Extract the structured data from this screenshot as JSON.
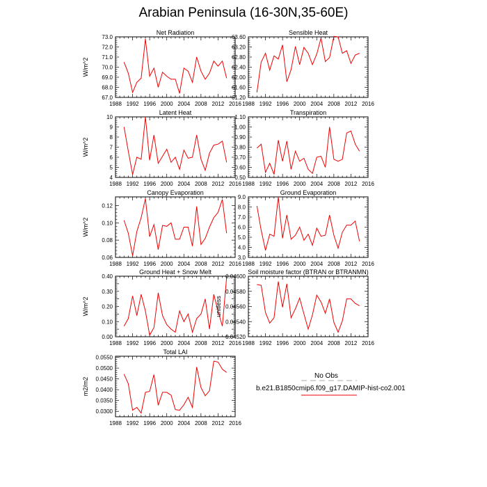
{
  "title": "Arabian Peninsula (16-30N,35-60E)",
  "legend": {
    "obs_label": "No Obs",
    "obs_color": "#aaaaaa",
    "case_label": "b.e21.B1850cmip6.f09_g17.DAMIP-hist-co2.001",
    "case_color": "#ee0000"
  },
  "chart_data": [
    {
      "type": "line",
      "title": "Net Radiation",
      "ylabel": "W/m^2",
      "xlim": [
        1988,
        2016
      ],
      "xticks": [
        1988,
        1992,
        1996,
        2000,
        2004,
        2008,
        2012,
        2016
      ],
      "xtick_labels": [
        "1988",
        "1992",
        "1996",
        "2000",
        "2004",
        "2008",
        "2012",
        "2016"
      ],
      "ylim": [
        67.0,
        73.0
      ],
      "yticks": [
        67.0,
        68.0,
        69.0,
        70.0,
        71.0,
        72.0,
        73.0
      ],
      "ytick_labels": [
        "67.0",
        "68.0",
        "69.0",
        "70.0",
        "71.0",
        "72.0",
        "73.0"
      ],
      "series": [
        {
          "x": [
            1990,
            1991,
            1992,
            1993,
            1994,
            1995,
            1996,
            1997,
            1998,
            1999,
            2000,
            2001,
            2002,
            2003,
            2004,
            2005,
            2006,
            2007,
            2008,
            2009,
            2010,
            2011,
            2012,
            2013,
            2014
          ],
          "values": [
            70.5,
            69.4,
            67.5,
            68.5,
            68.9,
            72.8,
            69.1,
            69.9,
            68.0,
            69.5,
            69.1,
            68.8,
            68.8,
            67.4,
            69.9,
            69.6,
            68.5,
            71.0,
            69.6,
            68.8,
            69.4,
            70.6,
            70.1,
            70.6,
            68.9
          ]
        }
      ]
    },
    {
      "type": "line",
      "title": "Sensible Heat",
      "ylabel": "",
      "xlim": [
        1988,
        2016
      ],
      "xticks": [
        1988,
        1992,
        1996,
        2000,
        2004,
        2008,
        2012,
        2016
      ],
      "xtick_labels": [
        "1988",
        "1992",
        "1996",
        "2000",
        "2004",
        "2008",
        "2012",
        "2016"
      ],
      "ylim": [
        61.2,
        63.6
      ],
      "yticks": [
        61.2,
        61.6,
        62.0,
        62.4,
        62.8,
        63.2,
        63.6
      ],
      "ytick_labels": [
        "61.20",
        "61.60",
        "62.00",
        "62.40",
        "62.80",
        "63.20",
        "63.60"
      ],
      "series": [
        {
          "x": [
            1990,
            1991,
            1992,
            1993,
            1994,
            1995,
            1996,
            1997,
            1998,
            1999,
            2000,
            2001,
            2002,
            2003,
            2004,
            2005,
            2006,
            2007,
            2008,
            2009,
            2010,
            2011,
            2012,
            2013,
            2014
          ],
          "values": [
            61.4,
            62.6,
            62.95,
            62.28,
            62.85,
            62.72,
            63.28,
            61.82,
            62.3,
            63.22,
            62.5,
            63.18,
            62.95,
            62.5,
            62.92,
            63.55,
            62.62,
            62.78,
            63.62,
            63.6,
            62.95,
            63.05,
            62.55,
            62.88,
            62.95
          ]
        }
      ]
    },
    {
      "type": "line",
      "title": "Latent Heat",
      "ylabel": "W/m^2",
      "xlim": [
        1988,
        2016
      ],
      "xticks": [
        1988,
        1992,
        1996,
        2000,
        2004,
        2008,
        2012,
        2016
      ],
      "xtick_labels": [
        "1988",
        "1992",
        "1996",
        "2000",
        "2004",
        "2008",
        "2012",
        "2016"
      ],
      "ylim": [
        4,
        10
      ],
      "yticks": [
        4,
        5,
        6,
        7,
        8,
        9,
        10
      ],
      "ytick_labels": [
        "4",
        "5",
        "6",
        "7",
        "8",
        "9",
        "10"
      ],
      "series": [
        {
          "x": [
            1990,
            1991,
            1992,
            1993,
            1994,
            1995,
            1996,
            1997,
            1998,
            1999,
            2000,
            2001,
            2002,
            2003,
            2004,
            2005,
            2006,
            2007,
            2008,
            2009,
            2010,
            2011,
            2012,
            2013,
            2014
          ],
          "values": [
            9.0,
            6.6,
            4.3,
            6.0,
            5.8,
            10.0,
            5.7,
            8.2,
            5.4,
            6.1,
            6.8,
            5.5,
            6.0,
            4.8,
            6.7,
            5.9,
            6.0,
            8.2,
            5.8,
            4.7,
            6.4,
            7.2,
            7.3,
            7.6,
            5.5
          ]
        }
      ]
    },
    {
      "type": "line",
      "title": "Transpiration",
      "ylabel": "",
      "xlim": [
        1988,
        2016
      ],
      "xticks": [
        1988,
        1992,
        1996,
        2000,
        2004,
        2008,
        2012,
        2016
      ],
      "xtick_labels": [
        "1988",
        "1992",
        "1996",
        "2000",
        "2004",
        "2008",
        "2012",
        "2016"
      ],
      "ylim": [
        0.5,
        1.1
      ],
      "yticks": [
        0.5,
        0.6,
        0.7,
        0.8,
        0.9,
        1.0,
        1.1
      ],
      "ytick_labels": [
        "0.50",
        "0.60",
        "0.70",
        "0.80",
        "0.90",
        "1.00",
        "1.10"
      ],
      "series": [
        {
          "x": [
            1990,
            1991,
            1992,
            1993,
            1994,
            1995,
            1996,
            1997,
            1998,
            1999,
            2000,
            2001,
            2002,
            2003,
            2004,
            2005,
            2006,
            2007,
            2008,
            2009,
            2010,
            2011,
            2012,
            2013,
            2014
          ],
          "values": [
            0.79,
            0.83,
            0.55,
            0.64,
            0.53,
            0.87,
            0.66,
            0.86,
            0.58,
            0.76,
            0.66,
            0.69,
            0.58,
            0.54,
            0.7,
            0.71,
            0.6,
            1.0,
            0.68,
            0.66,
            0.68,
            0.94,
            0.96,
            0.83,
            0.76
          ]
        }
      ]
    },
    {
      "type": "line",
      "title": "Canopy Evaporation",
      "ylabel": "W/m^2",
      "xlim": [
        1988,
        2016
      ],
      "xticks": [
        1988,
        1992,
        1996,
        2000,
        2004,
        2008,
        2012,
        2016
      ],
      "xtick_labels": [
        "1988",
        "1992",
        "1996",
        "2000",
        "2004",
        "2008",
        "2012",
        "2016"
      ],
      "ylim": [
        0.06,
        0.13
      ],
      "yticks": [
        0.06,
        0.08,
        0.1,
        0.12
      ],
      "ytick_labels": [
        "0.06",
        "0.08",
        "0.10",
        "0.12"
      ],
      "series": [
        {
          "x": [
            1990,
            1991,
            1992,
            1993,
            1994,
            1995,
            1996,
            1997,
            1998,
            1999,
            2000,
            2001,
            2002,
            2003,
            2004,
            2005,
            2006,
            2007,
            2008,
            2009,
            2010,
            2011,
            2012,
            2013,
            2014
          ],
          "values": [
            0.103,
            0.088,
            0.062,
            0.09,
            0.106,
            0.128,
            0.084,
            0.098,
            0.069,
            0.097,
            0.096,
            0.1,
            0.081,
            0.081,
            0.095,
            0.095,
            0.073,
            0.119,
            0.075,
            0.082,
            0.095,
            0.106,
            0.112,
            0.127,
            0.088
          ]
        }
      ]
    },
    {
      "type": "line",
      "title": "Ground Evaporation",
      "ylabel": "",
      "xlim": [
        1988,
        2016
      ],
      "xticks": [
        1988,
        1992,
        1996,
        2000,
        2004,
        2008,
        2012,
        2016
      ],
      "xtick_labels": [
        "1988",
        "1992",
        "1996",
        "2000",
        "2004",
        "2008",
        "2012",
        "2016"
      ],
      "ylim": [
        3.0,
        9.0
      ],
      "yticks": [
        3.0,
        4.0,
        5.0,
        6.0,
        7.0,
        8.0,
        9.0
      ],
      "ytick_labels": [
        "3.0",
        "4.0",
        "5.0",
        "6.0",
        "7.0",
        "8.0",
        "9.0"
      ],
      "series": [
        {
          "x": [
            1990,
            1991,
            1992,
            1993,
            1994,
            1995,
            1996,
            1997,
            1998,
            1999,
            2000,
            2001,
            2002,
            2003,
            2004,
            2005,
            2006,
            2007,
            2008,
            2009,
            2010,
            2011,
            2012,
            2013,
            2014
          ],
          "values": [
            8.1,
            5.7,
            3.7,
            5.3,
            5.1,
            9.0,
            4.9,
            7.2,
            4.8,
            5.2,
            6.0,
            4.7,
            5.3,
            4.2,
            5.9,
            5.1,
            5.2,
            7.2,
            5.2,
            3.9,
            5.5,
            6.2,
            6.2,
            6.6,
            4.6
          ]
        }
      ]
    },
    {
      "type": "line",
      "title": "Ground Heat + Snow Melt",
      "ylabel": "W/m^2",
      "xlim": [
        1988,
        2016
      ],
      "xticks": [
        1988,
        1992,
        1996,
        2000,
        2004,
        2008,
        2012,
        2016
      ],
      "xtick_labels": [
        "1988",
        "1992",
        "1996",
        "2000",
        "2004",
        "2008",
        "2012",
        "2016"
      ],
      "ylim": [
        0.0,
        0.4
      ],
      "yticks": [
        0.0,
        0.05,
        0.1,
        0.15,
        0.2,
        0.25,
        0.3,
        0.35,
        0.4
      ],
      "ytick_labels": [
        "0.00",
        "",
        "0.10",
        "",
        "0.20",
        "",
        "0.30",
        "",
        "0.40"
      ],
      "series": [
        {
          "x": [
            1990,
            1991,
            1992,
            1993,
            1994,
            1995,
            1996,
            1997,
            1998,
            1999,
            2000,
            2001,
            2002,
            2003,
            2004,
            2005,
            2006,
            2007,
            2008,
            2009,
            2010,
            2011,
            2012,
            2013,
            2014
          ],
          "values": [
            0.07,
            0.12,
            0.27,
            0.14,
            0.28,
            0.17,
            0.01,
            0.06,
            0.29,
            0.14,
            0.08,
            0.05,
            0.03,
            0.17,
            0.1,
            0.15,
            0.03,
            0.12,
            0.15,
            0.25,
            0.05,
            0.28,
            0.17,
            0.07,
            0.39
          ]
        }
      ]
    },
    {
      "type": "line",
      "title": "Soil moisture factor (BTRAN or BTRANMN)",
      "ylabel": "unitless",
      "xlim": [
        1988,
        2016
      ],
      "xticks": [
        1988,
        1992,
        1996,
        2000,
        2004,
        2008,
        2012,
        2016
      ],
      "xtick_labels": [
        "1988",
        "1992",
        "1996",
        "2000",
        "2004",
        "2008",
        "2012",
        "2016"
      ],
      "ylim": [
        0.0452,
        0.046
      ],
      "yticks": [
        0.0452,
        0.0454,
        0.0456,
        0.0458,
        0.046
      ],
      "ytick_labels": [
        "0.04520",
        "0.04540",
        "0.04560",
        "0.04580",
        "0.04600"
      ],
      "series": [
        {
          "x": [
            1990,
            1991,
            1992,
            1993,
            1994,
            1995,
            1996,
            1997,
            1998,
            1999,
            2000,
            2001,
            2002,
            2003,
            2004,
            2005,
            2006,
            2007,
            2008,
            2009,
            2010,
            2011,
            2012,
            2013,
            2014
          ],
          "values": [
            0.04589,
            0.04588,
            0.04552,
            0.04538,
            0.04545,
            0.04593,
            0.04559,
            0.0459,
            0.04545,
            0.04557,
            0.04571,
            0.0455,
            0.0453,
            0.04549,
            0.04575,
            0.04566,
            0.04551,
            0.0457,
            0.04539,
            0.04526,
            0.04541,
            0.0457,
            0.0457,
            0.04564,
            0.04561
          ]
        }
      ]
    },
    {
      "type": "line",
      "title": "Total LAI",
      "ylabel": "m2/m2",
      "xlim": [
        1988,
        2016
      ],
      "xticks": [
        1988,
        1992,
        1996,
        2000,
        2004,
        2008,
        2012,
        2016
      ],
      "xtick_labels": [
        "1988",
        "1992",
        "1996",
        "2000",
        "2004",
        "2008",
        "2012",
        "2016"
      ],
      "ylim": [
        0.0275,
        0.0555
      ],
      "yticks": [
        0.03,
        0.035,
        0.04,
        0.045,
        0.05,
        0.055
      ],
      "ytick_labels": [
        "0.0300",
        "0.0350",
        "0.0400",
        "0.0450",
        "0.0500",
        "0.0550"
      ],
      "series": [
        {
          "x": [
            1990,
            1991,
            1992,
            1993,
            1994,
            1995,
            1996,
            1997,
            1998,
            1999,
            2000,
            2001,
            2002,
            2003,
            2004,
            2005,
            2006,
            2007,
            2008,
            2009,
            2010,
            2011,
            2012,
            2013,
            2014
          ],
          "values": [
            0.0472,
            0.0428,
            0.0305,
            0.0318,
            0.0292,
            0.0388,
            0.0392,
            0.047,
            0.0328,
            0.0388,
            0.0388,
            0.0375,
            0.0308,
            0.0305,
            0.033,
            0.0365,
            0.0318,
            0.0505,
            0.041,
            0.0372,
            0.0395,
            0.0532,
            0.0528,
            0.0495,
            0.048
          ]
        }
      ]
    }
  ]
}
